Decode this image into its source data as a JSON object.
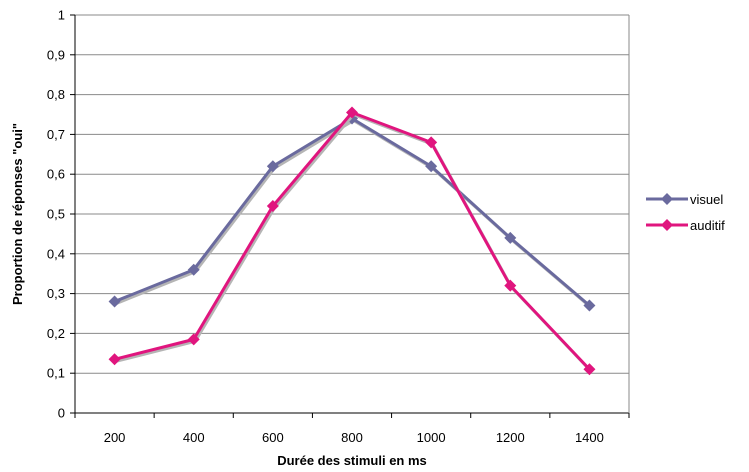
{
  "chart_data": {
    "type": "line",
    "title": "",
    "xlabel": "Durée des stimuli en ms",
    "ylabel": "Proportion de réponses \"oui\"",
    "categories": [
      "200",
      "400",
      "600",
      "800",
      "1000",
      "1200",
      "1400"
    ],
    "y_ticks": [
      "0",
      "0,1",
      "0,2",
      "0,3",
      "0,4",
      "0,5",
      "0,6",
      "0,7",
      "0,8",
      "0,9",
      "1"
    ],
    "ylim": [
      0,
      1
    ],
    "grid": true,
    "legend_position": "right",
    "series": [
      {
        "name": "visuel",
        "color": "#6a6a9e",
        "values": [
          0.28,
          0.36,
          0.62,
          0.74,
          0.62,
          0.44,
          0.27
        ]
      },
      {
        "name": "auditif",
        "color": "#e0157e",
        "values": [
          0.135,
          0.185,
          0.52,
          0.755,
          0.68,
          0.32,
          0.11
        ]
      }
    ]
  }
}
